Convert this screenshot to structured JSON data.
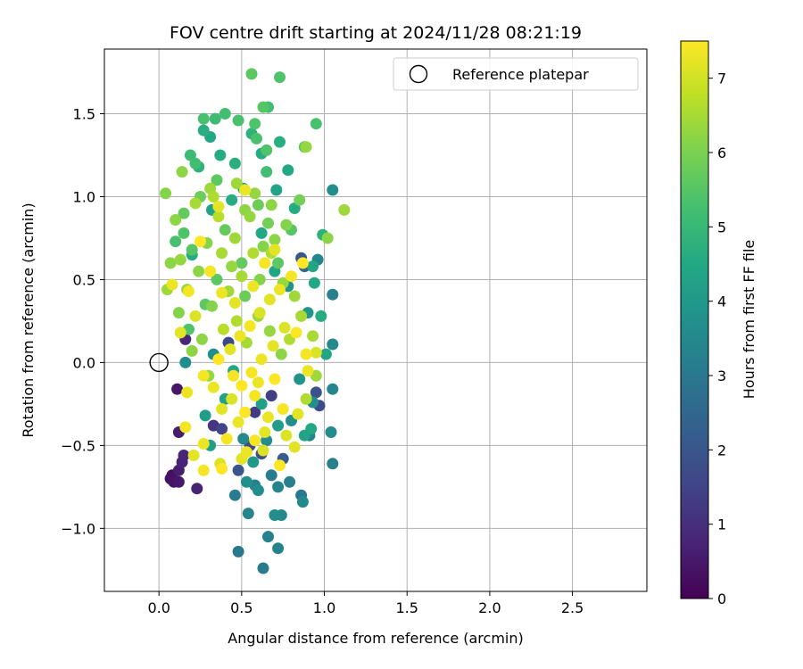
{
  "chart_data": {
    "type": "scatter",
    "title": "FOV centre drift starting at 2024/11/28 08:21:19",
    "xlabel": "Angular distance from reference (arcmin)",
    "ylabel": "Rotation from reference (arcmin)",
    "xlim": [
      -0.33,
      2.95
    ],
    "ylim": [
      -1.38,
      1.89
    ],
    "xticks": [
      0.0,
      0.5,
      1.0,
      1.5,
      2.0,
      2.5
    ],
    "xtick_labels": [
      "0.0",
      "0.5",
      "1.0",
      "1.5",
      "2.0",
      "2.5"
    ],
    "yticks": [
      -1.0,
      -0.5,
      0.0,
      0.5,
      1.0,
      1.5
    ],
    "ytick_labels": [
      "−1.0",
      "−0.5",
      "0.0",
      "0.5",
      "1.0",
      "1.5"
    ],
    "grid": true,
    "legend": {
      "placement": "top-right",
      "entries": [
        "Reference platepar"
      ]
    },
    "reference_point": {
      "x": 0.0,
      "y": 0.0,
      "label": "Reference platepar"
    },
    "colorbar": {
      "label": "Hours from first FF file",
      "colormap": "viridis",
      "range": [
        0,
        7.5
      ],
      "ticks": [
        0,
        1,
        2,
        3,
        4,
        5,
        6,
        7
      ],
      "tick_labels": [
        "0",
        "1",
        "2",
        "3",
        "4",
        "5",
        "6",
        "7"
      ]
    },
    "series": [
      {
        "points": [
          [
            0.07,
            -0.7,
            0.3
          ],
          [
            0.09,
            -0.72,
            0.4
          ],
          [
            0.12,
            -0.72,
            0.5
          ],
          [
            0.08,
            -0.68,
            0.3
          ],
          [
            0.12,
            -0.65,
            0.6
          ],
          [
            0.14,
            -0.6,
            0.7
          ],
          [
            0.15,
            -0.56,
            0.8
          ],
          [
            0.12,
            -0.42,
            0.6
          ],
          [
            0.11,
            -0.16,
            0.5
          ],
          [
            0.23,
            -0.76,
            0.7
          ],
          [
            0.16,
            0.14,
            0.8
          ],
          [
            0.33,
            -0.38,
            1.2
          ],
          [
            0.38,
            -0.4,
            1.5
          ],
          [
            0.55,
            -0.5,
            1.6
          ],
          [
            0.62,
            -0.55,
            1.8
          ],
          [
            0.48,
            -0.65,
            2.0
          ],
          [
            0.97,
            -0.26,
            1.7
          ],
          [
            0.95,
            -0.18,
            1.9
          ],
          [
            0.58,
            -0.3,
            1.3
          ],
          [
            0.75,
            -0.58,
            2.2
          ],
          [
            0.88,
            0.58,
            2.4
          ],
          [
            0.86,
            0.63,
            2.0
          ],
          [
            0.42,
            0.12,
            1.6
          ],
          [
            0.68,
            -0.2,
            1.4
          ],
          [
            0.48,
            -1.14,
            3.0
          ],
          [
            0.63,
            -1.24,
            3.1
          ],
          [
            0.66,
            -1.05,
            3.2
          ],
          [
            0.72,
            -1.12,
            3.3
          ],
          [
            0.54,
            -0.91,
            3.4
          ],
          [
            0.74,
            -0.92,
            3.5
          ],
          [
            0.7,
            -0.92,
            3.6
          ],
          [
            0.46,
            -0.8,
            3.1
          ],
          [
            0.58,
            -0.74,
            3.3
          ],
          [
            0.72,
            -0.75,
            3.4
          ],
          [
            0.79,
            -0.72,
            3.2
          ],
          [
            0.86,
            -0.8,
            3.0
          ],
          [
            0.87,
            -0.84,
            3.5
          ],
          [
            0.6,
            -0.77,
            3.6
          ],
          [
            0.68,
            -0.68,
            3.1
          ],
          [
            1.05,
            -0.61,
            3.2
          ],
          [
            0.91,
            -0.44,
            3.3
          ],
          [
            1.04,
            -0.42,
            3.6
          ],
          [
            1.05,
            -0.16,
            3.4
          ],
          [
            1.05,
            0.11,
            3.5
          ],
          [
            1.05,
            0.41,
            3.2
          ],
          [
            0.96,
            0.62,
            3.4
          ],
          [
            1.05,
            1.04,
            3.7
          ],
          [
            0.53,
            -0.72,
            3.7
          ],
          [
            0.65,
            -0.47,
            3.6
          ],
          [
            0.8,
            -0.35,
            3.7
          ],
          [
            0.57,
            -0.6,
            3.9
          ],
          [
            0.85,
            -0.1,
            3.8
          ],
          [
            0.16,
            0.0,
            3.6
          ],
          [
            0.33,
            0.05,
            3.7
          ],
          [
            0.78,
            0.46,
            3.8
          ],
          [
            0.9,
            0.3,
            3.9
          ],
          [
            0.51,
            -0.46,
            3.5
          ],
          [
            0.93,
            -0.24,
            3.6
          ],
          [
            0.28,
            -0.32,
            4.1
          ],
          [
            0.31,
            -0.5,
            4.2
          ],
          [
            0.4,
            -0.22,
            4.3
          ],
          [
            0.45,
            -0.05,
            4.4
          ],
          [
            0.62,
            -0.25,
            4.2
          ],
          [
            0.72,
            -0.38,
            4.1
          ],
          [
            0.88,
            -0.44,
            4.3
          ],
          [
            0.92,
            -0.4,
            4.5
          ],
          [
            1.01,
            0.05,
            4.4
          ],
          [
            0.98,
            0.28,
            4.6
          ],
          [
            0.94,
            0.48,
            4.5
          ],
          [
            0.2,
            0.65,
            4.6
          ],
          [
            0.27,
            1.4,
            4.7
          ],
          [
            0.31,
            1.36,
            4.5
          ],
          [
            0.37,
            1.25,
            4.6
          ],
          [
            0.46,
            1.2,
            4.7
          ],
          [
            0.51,
            1.05,
            4.4
          ],
          [
            0.56,
            1.38,
            4.8
          ],
          [
            0.62,
            1.26,
            4.6
          ],
          [
            0.71,
            1.04,
            4.3
          ],
          [
            0.73,
            1.33,
            4.7
          ],
          [
            0.78,
            1.16,
            4.5
          ],
          [
            0.82,
            0.93,
            4.6
          ],
          [
            0.99,
            0.77,
            4.8
          ],
          [
            0.93,
            0.58,
            4.4
          ],
          [
            0.24,
            1.18,
            4.8
          ],
          [
            0.32,
            0.92,
            4.3
          ],
          [
            0.62,
            0.78,
            4.5
          ],
          [
            0.44,
            0.98,
            4.6
          ],
          [
            0.7,
            0.55,
            4.4
          ],
          [
            0.19,
            1.25,
            5.1
          ],
          [
            0.22,
            1.2,
            5.2
          ],
          [
            0.27,
            1.47,
            5.3
          ],
          [
            0.34,
            1.47,
            5.1
          ],
          [
            0.4,
            1.5,
            5.2
          ],
          [
            0.48,
            1.46,
            5.3
          ],
          [
            0.58,
            1.44,
            5.4
          ],
          [
            0.63,
            1.54,
            5.5
          ],
          [
            0.66,
            1.54,
            5.2
          ],
          [
            0.59,
            1.35,
            5.3
          ],
          [
            0.65,
            1.28,
            5.4
          ],
          [
            0.56,
            1.74,
            5.6
          ],
          [
            0.73,
            1.72,
            5.4
          ],
          [
            0.95,
            1.44,
            5.3
          ],
          [
            0.88,
            1.3,
            5.5
          ],
          [
            0.65,
            1.15,
            5.2
          ],
          [
            0.72,
            0.6,
            5.6
          ],
          [
            0.15,
            0.78,
            5.4
          ],
          [
            0.1,
            0.73,
            5.3
          ],
          [
            0.2,
            0.68,
            5.5
          ],
          [
            0.35,
            0.5,
            5.6
          ],
          [
            0.5,
            0.6,
            5.7
          ],
          [
            0.6,
            0.95,
            5.8
          ],
          [
            0.8,
            0.8,
            5.5
          ],
          [
            0.28,
            0.35,
            5.6
          ],
          [
            0.18,
            0.2,
            5.4
          ],
          [
            0.4,
            0.8,
            5.7
          ],
          [
            0.52,
            0.4,
            5.8
          ],
          [
            0.85,
            0.98,
            5.9
          ],
          [
            0.15,
            0.9,
            5.7
          ],
          [
            0.35,
            1.1,
            5.6
          ],
          [
            0.66,
            0.84,
            5.9
          ],
          [
            0.25,
            1.0,
            5.8
          ],
          [
            0.04,
            1.02,
            6.1
          ],
          [
            0.1,
            0.86,
            6.2
          ],
          [
            0.13,
            0.62,
            6.3
          ],
          [
            0.07,
            0.6,
            6.2
          ],
          [
            0.05,
            0.44,
            6.4
          ],
          [
            0.12,
            0.3,
            6.1
          ],
          [
            0.2,
            0.07,
            6.2
          ],
          [
            0.3,
            -0.08,
            6.3
          ],
          [
            1.02,
            0.75,
            6.2
          ],
          [
            1.12,
            0.92,
            6.4
          ],
          [
            0.89,
            1.3,
            6.3
          ],
          [
            0.77,
            0.83,
            6.1
          ],
          [
            0.68,
            0.95,
            6.2
          ],
          [
            0.55,
            0.88,
            6.3
          ],
          [
            0.46,
            0.75,
            6.4
          ],
          [
            0.38,
            0.66,
            6.5
          ],
          [
            0.29,
            0.72,
            6.1
          ],
          [
            0.24,
            0.55,
            6.2
          ],
          [
            0.17,
            0.44,
            6.3
          ],
          [
            0.42,
            0.43,
            6.4
          ],
          [
            0.5,
            0.52,
            6.5
          ],
          [
            0.57,
            0.66,
            6.6
          ],
          [
            0.63,
            0.7,
            6.1
          ],
          [
            0.7,
            0.74,
            6.2
          ],
          [
            0.75,
            0.48,
            6.3
          ],
          [
            0.82,
            0.4,
            6.4
          ],
          [
            0.86,
            0.28,
            6.5
          ],
          [
            0.79,
            0.14,
            6.6
          ],
          [
            0.74,
            0.05,
            6.2
          ],
          [
            0.67,
            0.19,
            6.3
          ],
          [
            0.6,
            0.28,
            6.4
          ],
          [
            0.53,
            0.12,
            6.5
          ],
          [
            0.47,
            0.25,
            6.6
          ],
          [
            0.39,
            0.2,
            6.7
          ],
          [
            0.32,
            0.34,
            6.1
          ],
          [
            0.26,
            0.14,
            6.2
          ],
          [
            0.22,
            0.96,
            6.5
          ],
          [
            0.33,
            1.0,
            6.6
          ],
          [
            0.47,
            1.08,
            6.4
          ],
          [
            0.58,
            1.02,
            6.3
          ],
          [
            0.68,
            0.66,
            6.6
          ],
          [
            0.93,
            0.16,
            6.5
          ],
          [
            0.89,
            -0.22,
            6.6
          ],
          [
            0.95,
            -0.08,
            6.4
          ],
          [
            0.36,
            0.88,
            6.7
          ],
          [
            0.52,
            0.92,
            6.2
          ],
          [
            0.61,
            0.5,
            6.1
          ],
          [
            0.44,
            0.58,
            6.3
          ],
          [
            0.14,
            1.15,
            6.2
          ],
          [
            0.31,
            1.05,
            6.4
          ],
          [
            0.16,
            -0.39,
            7.4
          ],
          [
            0.17,
            -0.18,
            7.3
          ],
          [
            0.21,
            -0.56,
            7.2
          ],
          [
            0.27,
            -0.65,
            7.4
          ],
          [
            0.27,
            -0.49,
            7.3
          ],
          [
            0.37,
            -0.61,
            7.1
          ],
          [
            0.38,
            -0.64,
            7.5
          ],
          [
            0.5,
            -0.58,
            7.2
          ],
          [
            0.53,
            -0.54,
            7.3
          ],
          [
            0.58,
            -0.47,
            7.4
          ],
          [
            0.63,
            -0.53,
            7.1
          ],
          [
            0.73,
            -0.62,
            7.5
          ],
          [
            0.82,
            -0.51,
            7.2
          ],
          [
            0.66,
            -0.33,
            7.3
          ],
          [
            0.75,
            -0.28,
            7.4
          ],
          [
            0.84,
            -0.31,
            7.2
          ],
          [
            0.9,
            -0.05,
            7.3
          ],
          [
            0.89,
            0.05,
            7.4
          ],
          [
            0.83,
            0.18,
            7.5
          ],
          [
            0.76,
            0.21,
            7.1
          ],
          [
            0.69,
            0.1,
            7.2
          ],
          [
            0.62,
            0.02,
            7.3
          ],
          [
            0.56,
            -0.06,
            7.4
          ],
          [
            0.5,
            -0.14,
            7.5
          ],
          [
            0.44,
            -0.22,
            7.1
          ],
          [
            0.38,
            -0.28,
            7.2
          ],
          [
            0.33,
            -0.15,
            7.3
          ],
          [
            0.27,
            -0.08,
            7.4
          ],
          [
            0.36,
            0.02,
            7.5
          ],
          [
            0.43,
            0.08,
            7.2
          ],
          [
            0.49,
            0.16,
            7.3
          ],
          [
            0.55,
            0.22,
            7.4
          ],
          [
            0.61,
            0.3,
            7.1
          ],
          [
            0.67,
            0.38,
            7.2
          ],
          [
            0.73,
            0.44,
            7.3
          ],
          [
            0.8,
            0.52,
            7.4
          ],
          [
            0.87,
            0.6,
            7.5
          ],
          [
            0.95,
            0.06,
            7.1
          ],
          [
            0.46,
            0.36,
            7.2
          ],
          [
            0.38,
            0.42,
            7.3
          ],
          [
            0.31,
            0.55,
            7.4
          ],
          [
            0.25,
            0.73,
            7.5
          ],
          [
            0.36,
            0.94,
            7.2
          ],
          [
            0.52,
            1.04,
            7.3
          ],
          [
            0.18,
            0.43,
            7.4
          ],
          [
            0.22,
            0.28,
            7.1
          ],
          [
            0.13,
            0.18,
            7.2
          ],
          [
            0.08,
            0.47,
            7.3
          ],
          [
            0.58,
            -0.2,
            7.4
          ],
          [
            0.7,
            -0.1,
            7.5
          ],
          [
            0.64,
            -0.42,
            7.2
          ],
          [
            0.48,
            -0.36,
            7.3
          ],
          [
            0.41,
            -0.46,
            7.4
          ],
          [
            0.77,
            -0.44,
            7.1
          ],
          [
            0.57,
            0.46,
            7.3
          ],
          [
            0.64,
            0.6,
            7.4
          ],
          [
            0.7,
            0.68,
            7.2
          ],
          [
            0.52,
            -0.3,
            7.5
          ],
          [
            0.45,
            -0.08,
            7.4
          ],
          [
            0.6,
            -0.12,
            7.3
          ]
        ]
      }
    ]
  }
}
